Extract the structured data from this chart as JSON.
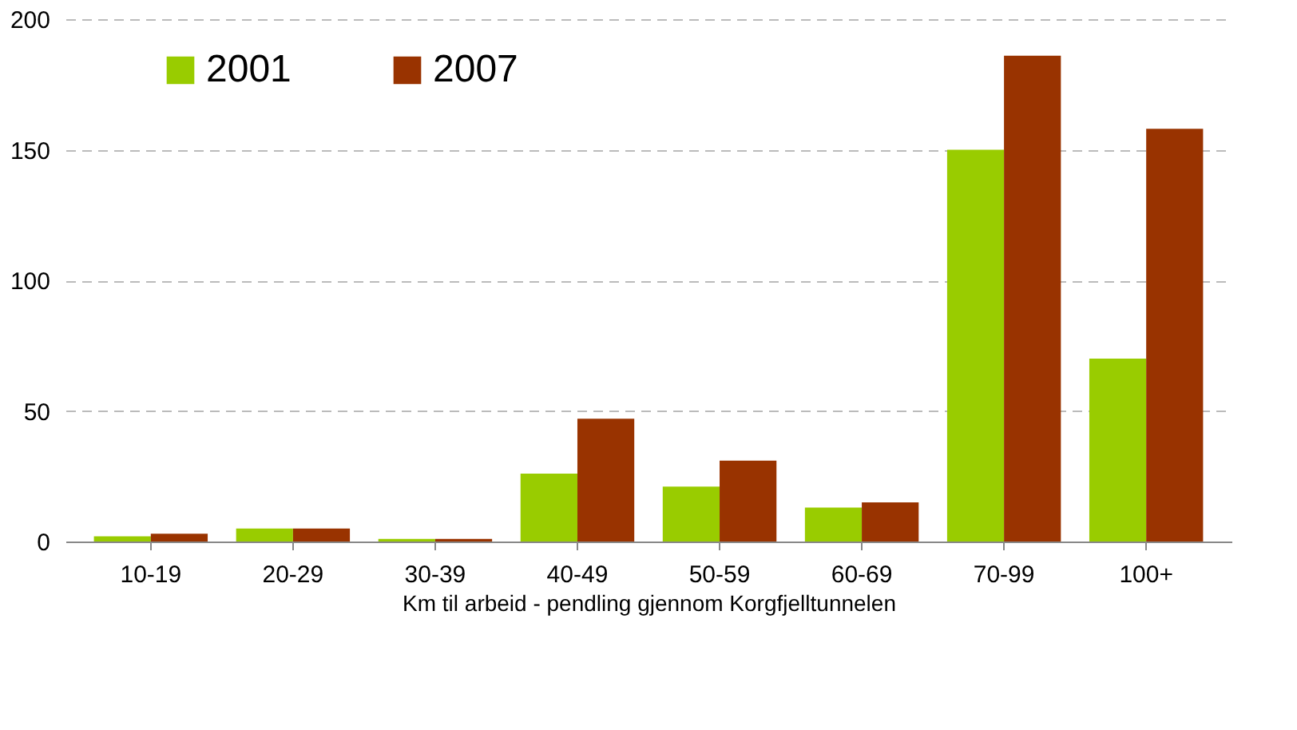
{
  "chart_data": {
    "type": "bar",
    "xlabel": "Km til arbeid - pendling gjennom Korgfjelltunnelen",
    "categories": [
      "10-19",
      "20-29",
      "30-39",
      "40-49",
      "50-59",
      "60-69",
      "70-99",
      "100+"
    ],
    "series": [
      {
        "name": "2001",
        "color": "#99cc00",
        "values": [
          2,
          5,
          1,
          26,
          21,
          13,
          150,
          70
        ]
      },
      {
        "name": "2007",
        "color": "#993300",
        "values": [
          3,
          5,
          1,
          47,
          31,
          15,
          186,
          158
        ]
      }
    ],
    "ylim": [
      0,
      200
    ],
    "yticks": [
      0,
      50,
      100,
      150,
      200
    ],
    "grid": "y",
    "legend": "top left"
  }
}
